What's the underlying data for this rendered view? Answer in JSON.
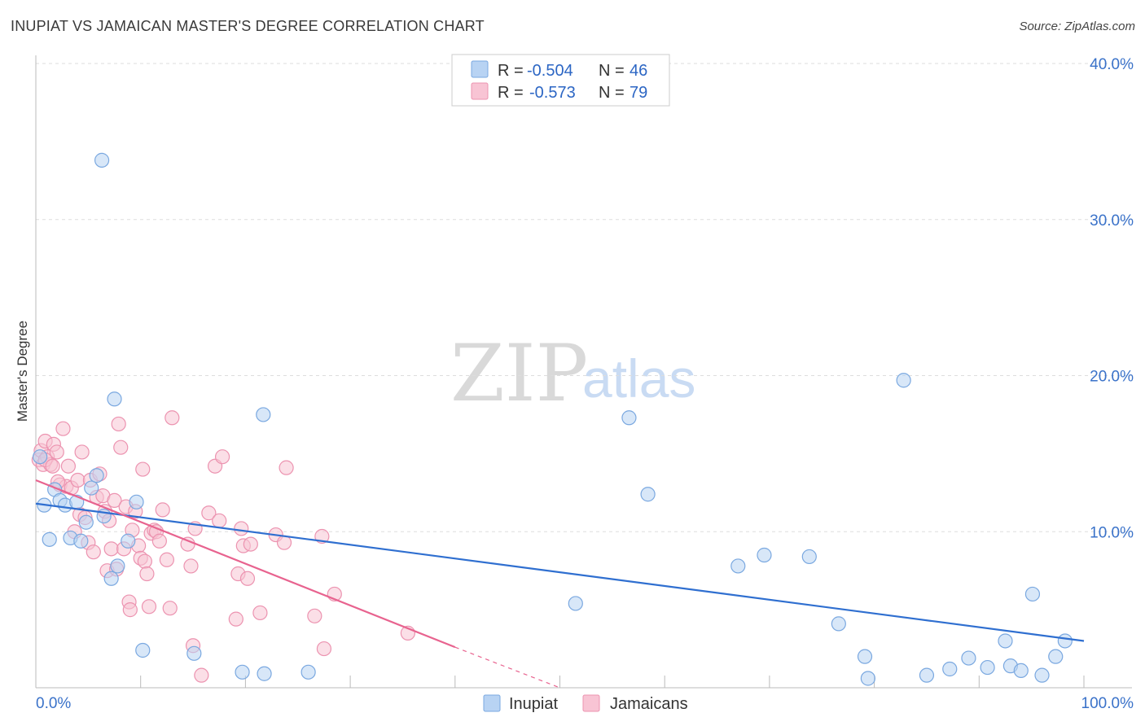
{
  "title": "INUPIAT VS JAMAICAN MASTER'S DEGREE CORRELATION CHART",
  "source": "Source: ZipAtlas.com",
  "watermark": {
    "zip": "ZIP",
    "atlas": "atlas"
  },
  "colors": {
    "inupiat_fill": "#b8d3f3",
    "inupiat_stroke": "#7aa8e0",
    "inupiat_line": "#2f6fd0",
    "jamaican_fill": "#f8c4d4",
    "jamaican_stroke": "#ec93b0",
    "jamaican_line": "#e8638f",
    "grid": "#dddddd",
    "axis_text": "#3a72c9"
  },
  "stats": [
    {
      "r_label": "R =",
      "r_value": "-0.504",
      "n_label": "N =",
      "n_value": "46"
    },
    {
      "r_label": "R =",
      "r_value": "-0.573",
      "n_label": "N =",
      "n_value": "79"
    }
  ],
  "legend": [
    "Inupiat",
    "Jamaicans"
  ],
  "chart_data": {
    "type": "scatter",
    "title": "INUPIAT VS JAMAICAN MASTER'S DEGREE CORRELATION CHART",
    "xlabel": "",
    "ylabel": "Master's Degree",
    "xlim": [
      0,
      100
    ],
    "ylim": [
      0,
      40
    ],
    "x_tick_labels": [
      "0.0%",
      "100.0%"
    ],
    "y_ticks": [
      10,
      20,
      30,
      40
    ],
    "y_tick_labels": [
      "10.0%",
      "20.0%",
      "30.0%",
      "40.0%"
    ],
    "grid": true,
    "legend_position": "bottom-center",
    "series": [
      {
        "name": "Inupiat",
        "r": -0.504,
        "n": 46,
        "trend": {
          "x0": 0,
          "y0": 11.8,
          "x1": 100,
          "y1": 3.0
        },
        "points": [
          [
            6.3,
            33.8
          ],
          [
            7.5,
            18.5
          ],
          [
            21.7,
            17.5
          ],
          [
            82.8,
            19.7
          ],
          [
            56.6,
            17.3
          ],
          [
            58.4,
            12.4
          ],
          [
            0.8,
            11.7
          ],
          [
            1.3,
            9.5
          ],
          [
            1.8,
            12.7
          ],
          [
            2.3,
            12.0
          ],
          [
            2.8,
            11.7
          ],
          [
            3.3,
            9.6
          ],
          [
            3.9,
            11.9
          ],
          [
            4.3,
            9.4
          ],
          [
            4.8,
            10.6
          ],
          [
            5.3,
            12.8
          ],
          [
            5.8,
            13.6
          ],
          [
            6.5,
            11.0
          ],
          [
            7.2,
            7.0
          ],
          [
            7.8,
            7.8
          ],
          [
            8.8,
            9.4
          ],
          [
            9.6,
            11.9
          ],
          [
            10.2,
            2.4
          ],
          [
            15.1,
            2.2
          ],
          [
            19.7,
            1.0
          ],
          [
            21.8,
            0.9
          ],
          [
            26.0,
            1.0
          ],
          [
            51.5,
            5.4
          ],
          [
            67.0,
            7.8
          ],
          [
            69.5,
            8.5
          ],
          [
            73.8,
            8.4
          ],
          [
            76.6,
            4.1
          ],
          [
            79.1,
            2.0
          ],
          [
            79.4,
            0.6
          ],
          [
            85.0,
            0.8
          ],
          [
            87.2,
            1.2
          ],
          [
            89.0,
            1.9
          ],
          [
            90.8,
            1.3
          ],
          [
            92.5,
            3.0
          ],
          [
            93.0,
            1.4
          ],
          [
            94.0,
            1.1
          ],
          [
            95.1,
            6.0
          ],
          [
            96.0,
            0.8
          ],
          [
            97.3,
            2.0
          ],
          [
            98.2,
            3.0
          ],
          [
            0.4,
            14.8
          ]
        ]
      },
      {
        "name": "Jamaicans",
        "r": -0.573,
        "n": 79,
        "trend_solid": {
          "x0": 0,
          "y0": 13.3,
          "x1": 40,
          "y1": 2.6
        },
        "trend_dashed": {
          "x0": 40,
          "y0": 2.6,
          "x1": 50,
          "y1": 0
        },
        "points": [
          [
            0.3,
            14.6
          ],
          [
            0.5,
            15.2
          ],
          [
            0.7,
            14.3
          ],
          [
            0.9,
            15.8
          ],
          [
            1.1,
            14.8
          ],
          [
            1.4,
            14.3
          ],
          [
            1.7,
            15.6
          ],
          [
            2.0,
            15.1
          ],
          [
            2.3,
            13.0
          ],
          [
            2.6,
            16.6
          ],
          [
            2.9,
            12.9
          ],
          [
            3.1,
            14.2
          ],
          [
            3.4,
            12.8
          ],
          [
            3.7,
            10.0
          ],
          [
            4.0,
            13.3
          ],
          [
            4.2,
            11.1
          ],
          [
            4.4,
            15.1
          ],
          [
            4.7,
            10.9
          ],
          [
            5.0,
            9.3
          ],
          [
            5.2,
            13.3
          ],
          [
            5.5,
            8.7
          ],
          [
            5.8,
            12.2
          ],
          [
            6.1,
            13.7
          ],
          [
            6.4,
            12.3
          ],
          [
            6.6,
            11.3
          ],
          [
            6.8,
            7.5
          ],
          [
            7.0,
            10.7
          ],
          [
            7.2,
            8.9
          ],
          [
            7.5,
            12.0
          ],
          [
            7.7,
            7.6
          ],
          [
            7.9,
            16.9
          ],
          [
            8.1,
            15.4
          ],
          [
            8.4,
            8.9
          ],
          [
            8.6,
            11.6
          ],
          [
            8.9,
            5.5
          ],
          [
            9.0,
            5.0
          ],
          [
            9.2,
            10.1
          ],
          [
            9.5,
            11.3
          ],
          [
            9.8,
            9.1
          ],
          [
            10.0,
            8.3
          ],
          [
            10.2,
            14.0
          ],
          [
            10.4,
            8.1
          ],
          [
            10.6,
            7.3
          ],
          [
            10.8,
            5.2
          ],
          [
            11.0,
            9.9
          ],
          [
            11.3,
            10.1
          ],
          [
            11.5,
            10.0
          ],
          [
            11.8,
            9.4
          ],
          [
            12.1,
            11.4
          ],
          [
            12.5,
            8.2
          ],
          [
            12.8,
            5.1
          ],
          [
            13.0,
            17.3
          ],
          [
            14.5,
            9.2
          ],
          [
            14.8,
            7.8
          ],
          [
            15.0,
            2.7
          ],
          [
            15.2,
            10.2
          ],
          [
            15.8,
            0.8
          ],
          [
            16.5,
            11.2
          ],
          [
            17.1,
            14.2
          ],
          [
            17.5,
            10.7
          ],
          [
            17.8,
            14.8
          ],
          [
            19.1,
            4.4
          ],
          [
            19.3,
            7.3
          ],
          [
            19.6,
            10.2
          ],
          [
            19.8,
            9.1
          ],
          [
            20.2,
            7.0
          ],
          [
            20.5,
            9.2
          ],
          [
            21.4,
            4.8
          ],
          [
            22.9,
            9.8
          ],
          [
            23.7,
            9.3
          ],
          [
            23.9,
            14.1
          ],
          [
            26.6,
            4.6
          ],
          [
            27.3,
            9.7
          ],
          [
            27.5,
            2.5
          ],
          [
            28.5,
            6.0
          ],
          [
            35.5,
            3.5
          ],
          [
            0.9,
            14.6
          ],
          [
            1.6,
            14.2
          ],
          [
            2.1,
            13.2
          ]
        ]
      }
    ]
  }
}
